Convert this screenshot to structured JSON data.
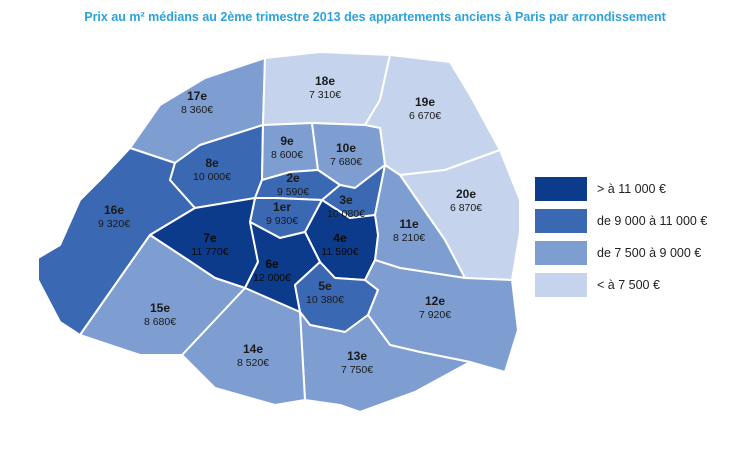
{
  "title": "Prix au m² médians au 2ème trimestre 2013 des appartements anciens à Paris par arrondissement",
  "colors": {
    "very_high": "#0c3b8c",
    "high": "#3a68b2",
    "mid": "#7e9ed2",
    "low": "#c5d4ec",
    "border": "#ffffff"
  },
  "legend": [
    {
      "label": "> à 11 000 €",
      "class": "very_high"
    },
    {
      "label": "de 9 000 à 11 000 €",
      "class": "high"
    },
    {
      "label": "de 7 500 à  9 000 €",
      "class": "mid"
    },
    {
      "label": "< à 7 500 €",
      "class": "low"
    }
  ],
  "arrondissements": [
    {
      "id": "1",
      "name": "1er",
      "price": "9 930€",
      "class": "high"
    },
    {
      "id": "2",
      "name": "2e",
      "price": "9 590€",
      "class": "high"
    },
    {
      "id": "3",
      "name": "3e",
      "price": "10 080€",
      "class": "high"
    },
    {
      "id": "4",
      "name": "4e",
      "price": "11 590€",
      "class": "very_high"
    },
    {
      "id": "5",
      "name": "5e",
      "price": "10 380€",
      "class": "high"
    },
    {
      "id": "6",
      "name": "6e",
      "price": "12 000€",
      "class": "very_high"
    },
    {
      "id": "7",
      "name": "7e",
      "price": "11 770€",
      "class": "very_high"
    },
    {
      "id": "8",
      "name": "8e",
      "price": "10 000€",
      "class": "high"
    },
    {
      "id": "9",
      "name": "9e",
      "price": "8 600€",
      "class": "mid"
    },
    {
      "id": "10",
      "name": "10e",
      "price": "7 680€",
      "class": "mid"
    },
    {
      "id": "11",
      "name": "11e",
      "price": "8 210€",
      "class": "mid"
    },
    {
      "id": "12",
      "name": "12e",
      "price": "7 920€",
      "class": "mid"
    },
    {
      "id": "13",
      "name": "13e",
      "price": "7 750€",
      "class": "mid"
    },
    {
      "id": "14",
      "name": "14e",
      "price": "8 520€",
      "class": "mid"
    },
    {
      "id": "15",
      "name": "15e",
      "price": "8 680€",
      "class": "mid"
    },
    {
      "id": "16",
      "name": "16e",
      "price": "9 320€",
      "class": "high"
    },
    {
      "id": "17",
      "name": "17e",
      "price": "8 360€",
      "class": "mid"
    },
    {
      "id": "18",
      "name": "18e",
      "price": "7 310€",
      "class": "low"
    },
    {
      "id": "19",
      "name": "19e",
      "price": "6 670€",
      "class": "low"
    },
    {
      "id": "20",
      "name": "20e",
      "price": "6 870€",
      "class": "low"
    }
  ]
}
